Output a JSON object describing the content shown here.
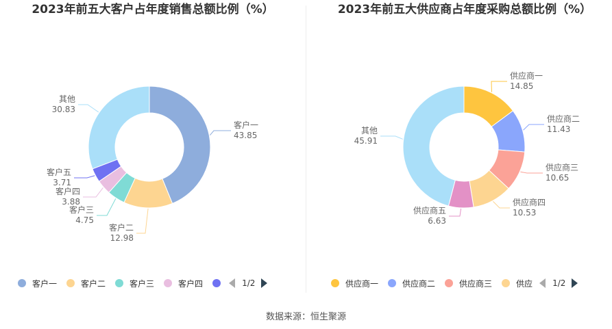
{
  "chart_data": [
    {
      "type": "pie",
      "title": "2023年前五大客户占年度销售总额比例（%）",
      "categories": [
        "客户一",
        "客户二",
        "客户三",
        "客户四",
        "客户五",
        "其他"
      ],
      "values": [
        "43.85",
        "12.98",
        "4.75",
        "3.88",
        "3.71",
        "30.83"
      ],
      "colors": [
        "#8eaddc",
        "#fdd591",
        "#7fdbd5",
        "#e9bee0",
        "#6f71f2",
        "#aadff9"
      ],
      "legend": {
        "placement": "bottom",
        "items": [
          "客户一",
          "客户二",
          "客户三",
          "客户四"
        ],
        "page": "1/2"
      }
    },
    {
      "type": "pie",
      "title": "2023年前五大供应商占年度采购总额比例（%）",
      "categories": [
        "供应商一",
        "供应商二",
        "供应商三",
        "供应商四",
        "供应商五",
        "其他"
      ],
      "values": [
        "14.85",
        "11.43",
        "10.65",
        "10.53",
        "6.63",
        "45.91"
      ],
      "colors": [
        "#fec53f",
        "#8aa6fc",
        "#fba297",
        "#fdd591",
        "#e391c6",
        "#aadff9"
      ],
      "legend": {
        "placement": "bottom",
        "items": [
          "供应商一",
          "供应商二",
          "供应商三",
          "供应"
        ],
        "page": "1/2"
      }
    }
  ],
  "footer": {
    "source": "数据来源：恒生聚源"
  }
}
